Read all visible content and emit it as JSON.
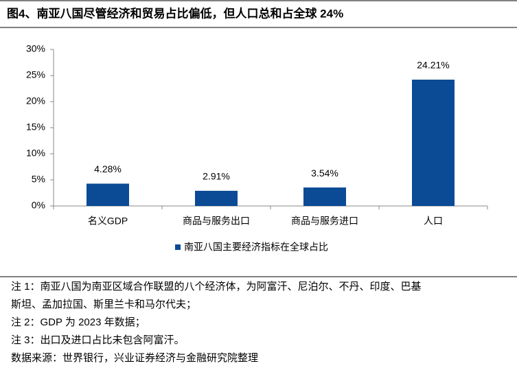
{
  "chart_data": {
    "type": "bar",
    "title": "图4、南亚八国尽管经济和贸易占比偏低，但人口总和占全球 24%",
    "categories": [
      "名义GDP",
      "商品与服务出口",
      "商品与服务进口",
      "人口"
    ],
    "series": [
      {
        "name": "南亚八国主要经济指标在全球占比",
        "color": "#0b4a95",
        "values": [
          4.28,
          2.91,
          3.54,
          24.21
        ],
        "value_labels": [
          "4.28%",
          "2.91%",
          "3.54%",
          "24.21%"
        ]
      }
    ],
    "ylim": [
      0,
      30
    ],
    "yticks": [
      {
        "value": 0,
        "label": "0%"
      },
      {
        "value": 5,
        "label": "5%"
      },
      {
        "value": 10,
        "label": "10%"
      },
      {
        "value": 15,
        "label": "15%"
      },
      {
        "value": 20,
        "label": "20%"
      },
      {
        "value": 25,
        "label": "25%"
      },
      {
        "value": 30,
        "label": "30%"
      }
    ],
    "grid": false,
    "legend": "bottom"
  },
  "notes": [
    "注 1：南亚八国为南亚区域合作联盟的八个经济体，为阿富汗、尼泊尔、不丹、印度、巴基",
    "斯坦、孟加拉国、斯里兰卡和马尔代夫；",
    "注 2：GDP 为 2023 年数据；",
    "注 3：出口及进口占比未包含阿富汗。",
    "数据来源：世界银行，兴业证券经济与金融研究院整理"
  ]
}
